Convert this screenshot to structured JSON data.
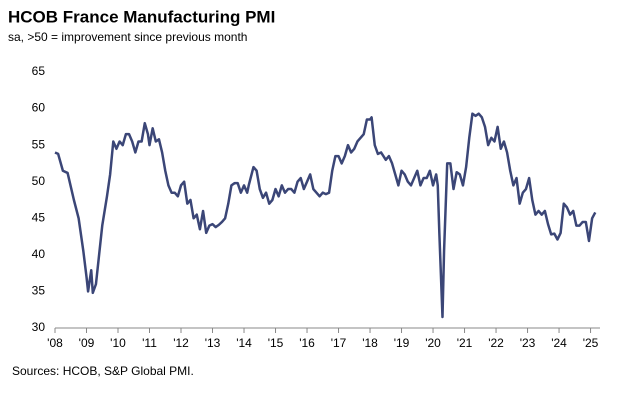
{
  "chart_data": {
    "type": "line",
    "title": "HCOB France Manufacturing PMI",
    "subtitle": "sa, >50 = improvement since previous month",
    "source": "Sources: HCOB, S&P Global PMI.",
    "color": "#3b4677",
    "x": [
      2008.0,
      2008.1,
      2008.25,
      2008.4,
      2008.6,
      2008.75,
      2008.9,
      2009.0,
      2009.05,
      2009.15,
      2009.2,
      2009.3,
      2009.4,
      2009.5,
      2009.65,
      2009.75,
      2009.85,
      2009.95,
      2010.05,
      2010.15,
      2010.25,
      2010.35,
      2010.45,
      2010.55,
      2010.65,
      2010.75,
      2010.85,
      2010.95,
      2011.0,
      2011.1,
      2011.2,
      2011.3,
      2011.4,
      2011.5,
      2011.6,
      2011.7,
      2011.8,
      2011.9,
      2012.0,
      2012.1,
      2012.2,
      2012.3,
      2012.4,
      2012.5,
      2012.6,
      2012.7,
      2012.8,
      2012.9,
      2013.0,
      2013.1,
      2013.2,
      2013.3,
      2013.4,
      2013.5,
      2013.6,
      2013.7,
      2013.8,
      2013.9,
      2014.0,
      2014.1,
      2014.15,
      2014.3,
      2014.4,
      2014.5,
      2014.6,
      2014.7,
      2014.8,
      2014.9,
      2015.0,
      2015.1,
      2015.2,
      2015.3,
      2015.4,
      2015.5,
      2015.6,
      2015.7,
      2015.8,
      2015.9,
      2016.0,
      2016.1,
      2016.2,
      2016.3,
      2016.4,
      2016.5,
      2016.6,
      2016.7,
      2016.8,
      2016.9,
      2017.0,
      2017.1,
      2017.2,
      2017.3,
      2017.4,
      2017.5,
      2017.6,
      2017.7,
      2017.8,
      2017.9,
      2018.0,
      2018.05,
      2018.15,
      2018.25,
      2018.35,
      2018.5,
      2018.6,
      2018.7,
      2018.8,
      2018.9,
      2019.0,
      2019.1,
      2019.2,
      2019.3,
      2019.4,
      2019.5,
      2019.6,
      2019.7,
      2019.8,
      2019.9,
      2020.0,
      2020.1,
      2020.15,
      2020.2,
      2020.3,
      2020.35,
      2020.45,
      2020.55,
      2020.65,
      2020.75,
      2020.85,
      2020.95,
      2021.05,
      2021.15,
      2021.25,
      2021.35,
      2021.45,
      2021.55,
      2021.65,
      2021.75,
      2021.85,
      2021.95,
      2022.05,
      2022.15,
      2022.25,
      2022.35,
      2022.45,
      2022.55,
      2022.65,
      2022.75,
      2022.85,
      2022.95,
      2023.05,
      2023.15,
      2023.25,
      2023.35,
      2023.45,
      2023.55,
      2023.65,
      2023.75,
      2023.85,
      2023.95,
      2024.05,
      2024.15,
      2024.25,
      2024.35,
      2024.45,
      2024.55,
      2024.65,
      2024.75,
      2024.85,
      2024.95,
      2025.05,
      2025.15
    ],
    "values": [
      54,
      53.8,
      51.5,
      51.2,
      47.5,
      45,
      40.5,
      37,
      35,
      37.9,
      34.8,
      36,
      40,
      44,
      48,
      51,
      55.5,
      54.5,
      55.5,
      55,
      56.5,
      56.5,
      55.5,
      54,
      55.5,
      55.5,
      58,
      56.5,
      55,
      57.3,
      55.5,
      55.8,
      54,
      51.5,
      49.5,
      48.5,
      48.5,
      48,
      49.5,
      50,
      47,
      47.5,
      45,
      45.5,
      43.5,
      46,
      43,
      44,
      44.2,
      43.8,
      44.1,
      44.5,
      45,
      47,
      49.5,
      49.8,
      49.8,
      48.5,
      49.5,
      48.5,
      49.5,
      52,
      51.5,
      49,
      47.8,
      48.5,
      47,
      47.5,
      49,
      48,
      49.5,
      48.5,
      49,
      49,
      48.5,
      50,
      50.5,
      49,
      50,
      51,
      49,
      48.5,
      48,
      48.5,
      48.3,
      48.5,
      51.5,
      53.5,
      53.5,
      52.5,
      53.5,
      55,
      54,
      54.5,
      55.5,
      56,
      56.5,
      58.5,
      58.5,
      58.8,
      55,
      53.8,
      54,
      53,
      53.5,
      52.5,
      51,
      49.5,
      51.5,
      51,
      50,
      49.5,
      50.5,
      51.5,
      49.5,
      50.5,
      50.5,
      51.5,
      49.5,
      51,
      49.5,
      43,
      31.5,
      40.5,
      52.5,
      52.5,
      49,
      51.3,
      51,
      49.5,
      52,
      56,
      59.3,
      59,
      59.3,
      58.8,
      57.5,
      55,
      56,
      55.5,
      57.5,
      54.5,
      55.5,
      54,
      51.5,
      49.5,
      50.5,
      47,
      48.5,
      49,
      50.5,
      47.5,
      45.5,
      46,
      45.5,
      46,
      44.2,
      42.8,
      42.9,
      42.1,
      43,
      47,
      46.5,
      45.5,
      46,
      44,
      44,
      44.5,
      44.5,
      41.9,
      45,
      45.8
    ],
    "xlim": [
      2008,
      2025.3
    ],
    "xticks": [
      {
        "value": 2008,
        "label": "'08"
      },
      {
        "value": 2009,
        "label": "'09"
      },
      {
        "value": 2010,
        "label": "'10"
      },
      {
        "value": 2011,
        "label": "'11"
      },
      {
        "value": 2012,
        "label": "'12"
      },
      {
        "value": 2013,
        "label": "'13"
      },
      {
        "value": 2014,
        "label": "'14"
      },
      {
        "value": 2015,
        "label": "'15"
      },
      {
        "value": 2016,
        "label": "'16"
      },
      {
        "value": 2017,
        "label": "'17"
      },
      {
        "value": 2018,
        "label": "'18"
      },
      {
        "value": 2019,
        "label": "'19"
      },
      {
        "value": 2020,
        "label": "'20"
      },
      {
        "value": 2021,
        "label": "'21"
      },
      {
        "value": 2022,
        "label": "'22"
      },
      {
        "value": 2023,
        "label": "'23"
      },
      {
        "value": 2024,
        "label": "'24"
      },
      {
        "value": 2025,
        "label": "'25"
      }
    ],
    "ylim": [
      30,
      65
    ],
    "yticks": [
      30,
      35,
      40,
      45,
      50,
      55,
      60,
      65
    ]
  }
}
